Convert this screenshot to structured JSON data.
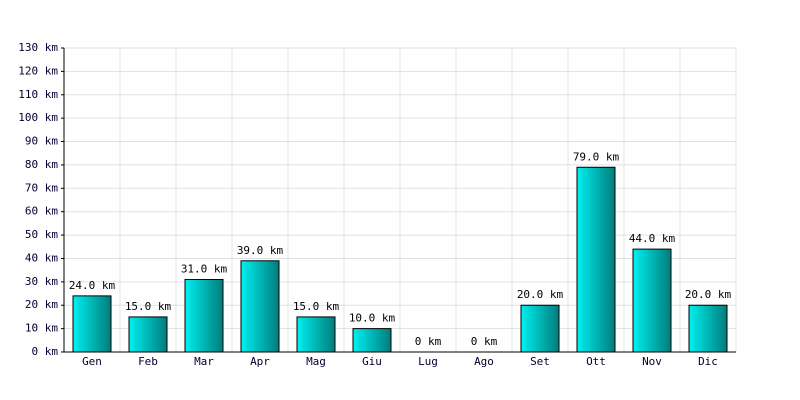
{
  "chart_data": {
    "type": "bar",
    "categories": [
      "Gen",
      "Feb",
      "Mar",
      "Apr",
      "Mag",
      "Giu",
      "Lug",
      "Ago",
      "Set",
      "Ott",
      "Nov",
      "Dic"
    ],
    "values": [
      24,
      15,
      31,
      39,
      15,
      10,
      0,
      0,
      20,
      79,
      44,
      20
    ],
    "value_labels": [
      "24.0 km",
      "15.0 km",
      "31.0 km",
      "39.0 km",
      "15.0 km",
      "10.0 km",
      "0 km",
      "0 km",
      "20.0 km",
      "79.0 km",
      "44.0 km",
      "20.0 km"
    ],
    "color": "#00cccc",
    "ylim": [
      0,
      130
    ],
    "yticks": [
      {
        "value": 0,
        "label": "0 km"
      },
      {
        "value": 10,
        "label": "10 km"
      },
      {
        "value": 20,
        "label": "20 km"
      },
      {
        "value": 30,
        "label": "30 km"
      },
      {
        "value": 40,
        "label": "40 km"
      },
      {
        "value": 50,
        "label": "50 km"
      },
      {
        "value": 60,
        "label": "60 km"
      },
      {
        "value": 70,
        "label": "70 km"
      },
      {
        "value": 80,
        "label": "80 km"
      },
      {
        "value": 90,
        "label": "90 km"
      },
      {
        "value": 100,
        "label": "100 km"
      },
      {
        "value": 110,
        "label": "110 km"
      },
      {
        "value": 120,
        "label": "120 km"
      },
      {
        "value": 130,
        "label": "130 km"
      }
    ],
    "grid": true
  }
}
